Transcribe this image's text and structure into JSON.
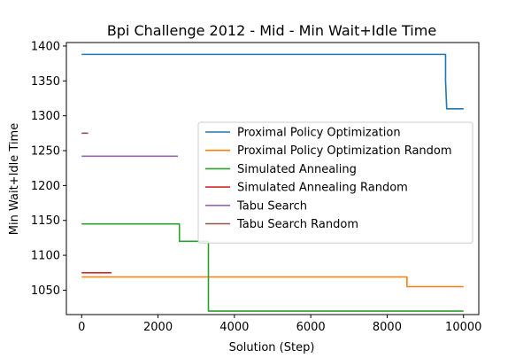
{
  "chart_data": {
    "type": "line",
    "title": "Bpi Challenge 2012 - Mid - Min Wait+Idle Time",
    "xlabel": "Solution (Step)",
    "ylabel": "Min Wait+Idle Time",
    "xlim": [
      -400,
      10400
    ],
    "ylim": [
      1015,
      1405
    ],
    "xticks": [
      0,
      2000,
      4000,
      6000,
      8000,
      10000
    ],
    "yticks": [
      1050,
      1100,
      1150,
      1200,
      1250,
      1300,
      1350,
      1400
    ],
    "grid": false,
    "legend_position": "center-right",
    "series": [
      {
        "name": "Proximal Policy Optimization",
        "color": "#1f77b4",
        "x": [
          0,
          9530,
          9530,
          9560,
          10000
        ],
        "y": [
          1388,
          1388,
          1350,
          1310,
          1310
        ]
      },
      {
        "name": "Proximal Policy Optimization Random",
        "color": "#ff7f0e",
        "x": [
          0,
          8520,
          8520,
          10000
        ],
        "y": [
          1069,
          1069,
          1055,
          1055
        ]
      },
      {
        "name": "Simulated Annealing",
        "color": "#2ca02c",
        "x": [
          0,
          2560,
          2560,
          3320,
          3320,
          10000
        ],
        "y": [
          1145,
          1145,
          1120,
          1120,
          1020,
          1020
        ]
      },
      {
        "name": "Simulated Annealing Random",
        "color": "#d62728",
        "x": [
          0,
          780
        ],
        "y": [
          1075,
          1075
        ]
      },
      {
        "name": "Tabu Search",
        "color": "#9467bd",
        "x": [
          0,
          2520
        ],
        "y": [
          1242,
          1242
        ]
      },
      {
        "name": "Tabu Search Random",
        "color": "#8c564b",
        "x": [
          0,
          170
        ],
        "y": [
          1275,
          1275
        ]
      }
    ]
  }
}
